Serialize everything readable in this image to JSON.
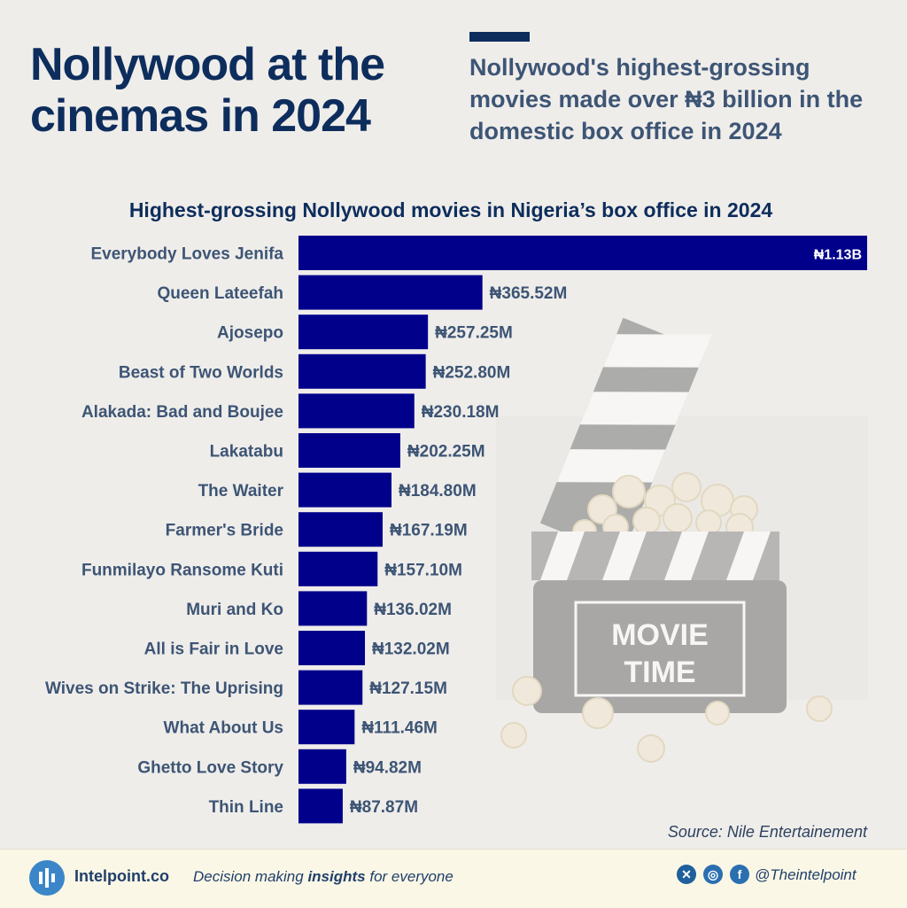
{
  "header": {
    "title": "Nollywood at the cinemas in 2024",
    "subtitle": "Nollywood's highest-grossing movies made over ₦3 billion in the domestic box office in 2024"
  },
  "chart_data": {
    "type": "bar",
    "orientation": "horizontal",
    "title": "Highest-grossing Nollywood movies in Nigeria’s box office in 2024",
    "categories": [
      "Everybody Loves Jenifa",
      "Queen Lateefah",
      "Ajosepo",
      "Beast of Two Worlds",
      "Alakada: Bad and Boujee",
      "Lakatabu",
      "The Waiter",
      "Farmer's Bride",
      "Funmilayo Ransome Kuti",
      "Muri and Ko",
      "All is Fair in Love",
      "Wives on Strike: The Uprising",
      "What About Us",
      "Ghetto Love Story",
      "Thin Line"
    ],
    "values": [
      1130,
      365.52,
      257.25,
      252.8,
      230.18,
      202.25,
      184.8,
      167.19,
      157.1,
      136.02,
      132.02,
      127.15,
      111.46,
      94.82,
      87.87
    ],
    "value_unit": "₦ millions",
    "data_labels": [
      "₦1.13B",
      "₦365.52M",
      "₦257.25M",
      "₦252.80M",
      "₦230.18M",
      "₦202.25M",
      "₦184.80M",
      "₦167.19M",
      "₦157.10M",
      "₦136.02M",
      "₦132.02M",
      "₦127.15M",
      "₦111.46M",
      "₦94.82M",
      "₦87.87M"
    ],
    "xlim": [
      0,
      1130
    ],
    "bar_color": "#00008b",
    "grid": false,
    "legend": "none"
  },
  "illustration": {
    "icon": "clapperboard-popcorn-icon",
    "text_line1": "MOVIE",
    "text_line2": "TIME"
  },
  "source": "Source: Nile Entertainement",
  "footer": {
    "brand": "Intelpoint.co",
    "tagline_pre": "Decision making ",
    "tagline_bold": "insights",
    "tagline_post": " for everyone",
    "handle": "@Theintelpoint",
    "social_icons": [
      "x-icon",
      "instagram-icon",
      "facebook-icon"
    ]
  }
}
